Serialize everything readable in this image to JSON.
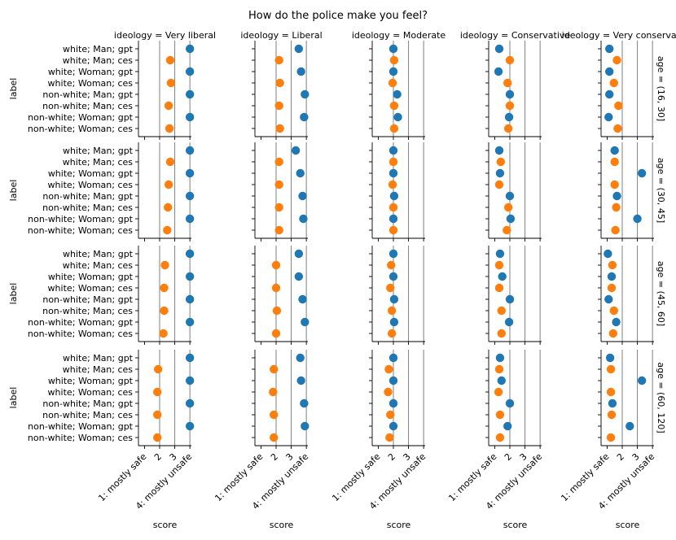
{
  "chart_data": {
    "type": "scatter",
    "title": "How do the police make you feel?",
    "xlabel": "score",
    "ylabel": "label",
    "xlim": [
      0.6,
      4.1
    ],
    "xticks": [
      1,
      2,
      3,
      4
    ],
    "xtick_labels": [
      "1: mostly safe",
      "2",
      "3",
      "4: mostly unsafe"
    ],
    "gridlines_x": [
      2,
      3,
      4
    ],
    "categories": [
      "white; Man; gpt",
      "white; Man; ces",
      "white; Woman; gpt",
      "white; Woman; ces",
      "non-white; Man; gpt",
      "non-white; Man; ces",
      "non-white; Woman; gpt",
      "non-white; Woman; ces"
    ],
    "colors": {
      "gpt": "#1f77b4",
      "ces": "#ff7f0e"
    },
    "columns": [
      "ideology = Very liberal",
      "ideology = Liberal",
      "ideology = Moderate",
      "ideology = Conservative",
      "ideology = Very conservative"
    ],
    "rows": [
      "age = (16, 30]",
      "age = (30, 45]",
      "age = (45, 60]",
      "age = (60, 120]"
    ],
    "values": [
      [
        [
          4.0,
          2.7,
          4.0,
          2.75,
          4.0,
          2.6,
          4.0,
          2.65
        ],
        [
          3.5,
          2.2,
          3.65,
          2.25,
          3.9,
          2.2,
          3.85,
          2.25
        ],
        [
          2.0,
          2.05,
          2.0,
          1.95,
          2.25,
          2.05,
          2.3,
          2.05
        ],
        [
          1.3,
          2.0,
          1.25,
          1.85,
          2.0,
          2.0,
          1.95,
          1.9
        ],
        [
          1.15,
          1.65,
          1.15,
          1.45,
          1.15,
          1.75,
          1.1,
          1.7
        ]
      ],
      [
        [
          4.0,
          2.7,
          4.0,
          2.6,
          4.0,
          2.55,
          4.0,
          2.5
        ],
        [
          3.3,
          2.2,
          3.6,
          2.2,
          3.75,
          2.2,
          3.8,
          2.2
        ],
        [
          2.0,
          2.0,
          2.0,
          1.95,
          2.05,
          2.0,
          2.0,
          2.0
        ],
        [
          1.3,
          1.4,
          1.35,
          1.3,
          2.0,
          1.9,
          2.05,
          1.8
        ],
        [
          1.5,
          1.5,
          3.3,
          1.5,
          1.65,
          1.6,
          3.0,
          1.55
        ]
      ],
      [
        [
          4.0,
          2.35,
          4.0,
          2.3,
          4.0,
          2.3,
          4.0,
          2.25
        ],
        [
          3.5,
          2.0,
          3.5,
          2.0,
          3.75,
          2.05,
          3.9,
          2.0
        ],
        [
          2.0,
          1.85,
          2.0,
          1.8,
          2.05,
          1.9,
          2.05,
          1.9
        ],
        [
          1.35,
          1.3,
          1.5,
          1.3,
          2.0,
          1.45,
          1.95,
          1.45
        ],
        [
          1.05,
          1.35,
          1.3,
          1.3,
          1.1,
          1.45,
          1.6,
          1.4
        ]
      ],
      [
        [
          4.0,
          1.9,
          4.0,
          1.85,
          4.0,
          1.85,
          4.0,
          1.85
        ],
        [
          3.6,
          1.85,
          3.65,
          1.8,
          3.85,
          1.85,
          3.9,
          1.85
        ],
        [
          2.0,
          1.7,
          2.0,
          1.65,
          2.0,
          1.8,
          2.0,
          1.75
        ],
        [
          1.35,
          1.3,
          1.45,
          1.25,
          2.0,
          1.35,
          1.85,
          1.35
        ],
        [
          1.2,
          1.25,
          3.3,
          1.25,
          1.35,
          1.3,
          2.5,
          1.25
        ]
      ]
    ],
    "errorbars": [
      {
        "row": 0,
        "col": 3,
        "item": 1,
        "half_width": 0.2
      },
      {
        "row": 0,
        "col": 4,
        "item": 1,
        "half_width": 0.2
      },
      {
        "row": 0,
        "col": 4,
        "item": 3,
        "half_width": 0.15
      },
      {
        "row": 1,
        "col": 4,
        "item": 2,
        "half_width": 0.1
      },
      {
        "row": 3,
        "col": 4,
        "item": 2,
        "half_width": 0.2
      },
      {
        "row": 3,
        "col": 4,
        "item": 6,
        "half_width": 0.15
      }
    ]
  }
}
